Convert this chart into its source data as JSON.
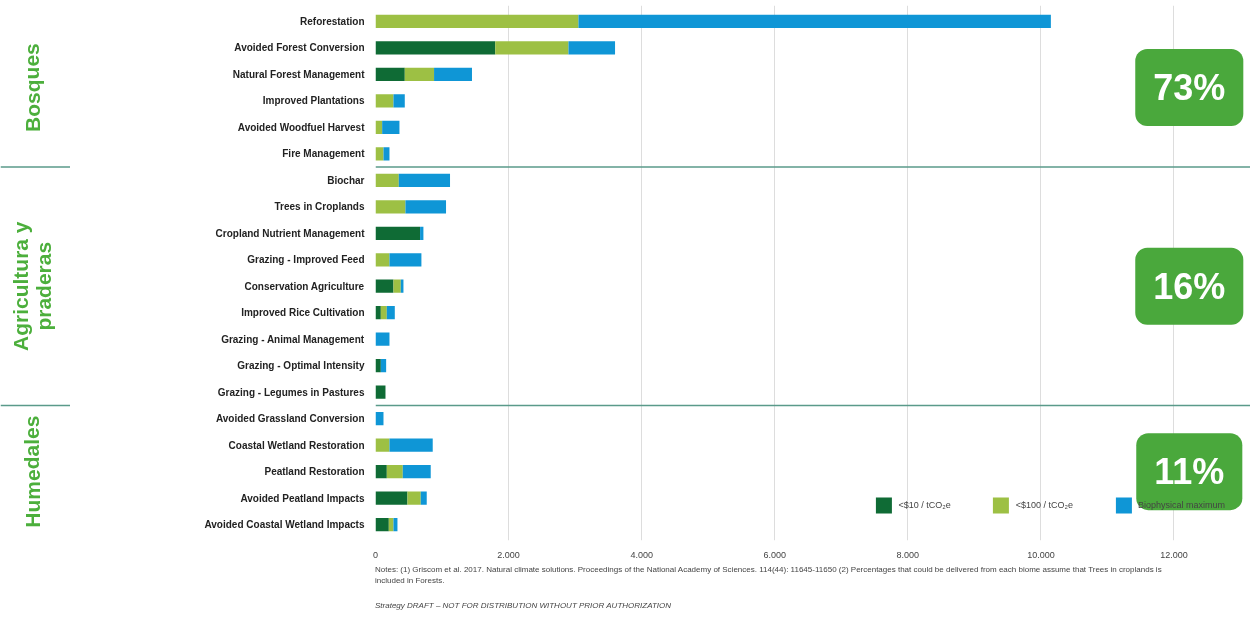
{
  "chart_data": {
    "type": "bar",
    "orientation": "horizontal",
    "stacked": true,
    "categories": [
      "Reforestation",
      "Avoided Forest Conversion",
      "Natural Forest Management",
      "Improved Plantations",
      "Avoided Woodfuel Harvest",
      "Fire Management",
      "Biochar",
      "Trees in Croplands",
      "Cropland Nutrient Management",
      "Grazing - Improved Feed",
      "Conservation Agriculture",
      "Improved Rice Cultivation",
      "Grazing - Animal Management",
      "Grazing - Optimal Intensity",
      "Grazing - Legumes in Pastures",
      "Avoided Grassland Conversion",
      "Coastal Wetland Restoration",
      "Peatland Restoration",
      "Avoided Peatland Impacts",
      "Avoided Coastal Wetland Impacts"
    ],
    "series": [
      {
        "name": "<$10 / tCO₂e",
        "color": "#0f6b35",
        "values": [
          0,
          1800,
          440,
          0,
          0,
          0,
          0,
          0,
          670,
          0,
          270,
          80,
          0,
          80,
          150,
          0,
          0,
          170,
          480,
          200
        ]
      },
      {
        "name": "<$100 / tCO₂e",
        "color": "#9dc044",
        "values": [
          3050,
          1100,
          440,
          270,
          100,
          120,
          350,
          450,
          0,
          210,
          110,
          90,
          0,
          0,
          0,
          0,
          210,
          240,
          200,
          70
        ]
      },
      {
        "name": "Biophysical maximum",
        "color": "#0f96d6",
        "values": [
          7100,
          700,
          570,
          170,
          260,
          90,
          770,
          610,
          50,
          480,
          40,
          120,
          210,
          80,
          0,
          120,
          650,
          420,
          90,
          60
        ]
      }
    ],
    "xlim": [
      0,
      13150
    ],
    "xticks": [
      0,
      {
        "value": 2000,
        "label": "2.000"
      },
      {
        "value": 4000,
        "label": "4.000"
      },
      {
        "value": 6000,
        "label": "6.000"
      },
      {
        "value": 8000,
        "label": "8.000"
      },
      {
        "value": 10000,
        "label": "10.000"
      },
      {
        "value": 12000,
        "label": "12.000"
      }
    ],
    "grid": "x",
    "legend": "bottom right",
    "annotations": [
      "Bosques",
      "Agricultura y\npraderas",
      "Humedales",
      "73%",
      "16%",
      "11%",
      "Notes: (1) Griscom et al. 2017. Natural climate solutions. Proceedings of the National Academy of Sciences. 114(44): 11645-11650 (2) Percentages that could be delivered from each biome assume that Trees in croplands is included in Forests.",
      "Strategy DRAFT – NOT FOR DISTRIBUTION WITHOUT PRIOR AUTHORIZATION"
    ]
  }
}
